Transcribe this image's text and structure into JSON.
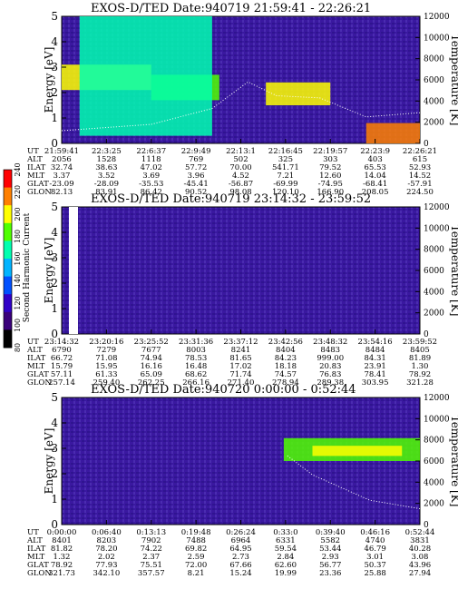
{
  "panels": [
    {
      "title": "EXOS-D/TED   Date:940719  21:59:41 - 22:26:21",
      "ylabel_left": "Energy [eV]",
      "ylabel_right": "Temperature [K]",
      "row_labels": [
        "UT",
        "ALT",
        "ILAT",
        "MLT",
        "GLAT",
        "GLON"
      ],
      "columns": [
        [
          "21:59:41",
          "2056",
          "32.74",
          "3.37",
          "-23.09",
          "82.13"
        ],
        [
          "22:3:25",
          "1528",
          "38.63",
          "3.52",
          "-28.09",
          "83.91"
        ],
        [
          "22:6:37",
          "1118",
          "47.02",
          "3.69",
          "-35.53",
          "86.42"
        ],
        [
          "22:9:49",
          "769",
          "57.72",
          "3.96",
          "-45.41",
          "90.52"
        ],
        [
          "22:13:1",
          "502",
          "70.00",
          "4.52",
          "-56.87",
          "98.08"
        ],
        [
          "22:16:45",
          "325",
          "541.71",
          "7.21",
          "-69.99",
          "120.10"
        ],
        [
          "22:19:57",
          "303",
          "79.52",
          "12.60",
          "-74.95",
          "166.90"
        ],
        [
          "22:23:9",
          "403",
          "65.53",
          "14.04",
          "-68.41",
          "208.05"
        ],
        [
          "22:26:21",
          "615",
          "52.93",
          "14.52",
          "-57.91",
          "224.50"
        ]
      ]
    },
    {
      "title": "EXOS-D/TED   Date:940719  23:14:32 - 23:59:52",
      "ylabel_left": "Energy [eV]",
      "ylabel_right": "Temperature [K]",
      "row_labels": [
        "UT",
        "ALT",
        "ILAT",
        "MLT",
        "GLAT",
        "GLON"
      ],
      "columns": [
        [
          "23:14:32",
          "6790",
          "66.72",
          "15.79",
          "57.11",
          "257.14"
        ],
        [
          "23:20:16",
          "7279",
          "71.08",
          "15.95",
          "61.33",
          "259.40"
        ],
        [
          "23:25:52",
          "7677",
          "74.94",
          "16.16",
          "65.09",
          "262.25"
        ],
        [
          "23:31:36",
          "8003",
          "78.53",
          "16.48",
          "68.62",
          "266.16"
        ],
        [
          "23:37:12",
          "8241",
          "81.65",
          "17.02",
          "71.74",
          "271.40"
        ],
        [
          "23:42:56",
          "8404",
          "84.23",
          "18.18",
          "74.57",
          "278.94"
        ],
        [
          "23:48:32",
          "8483",
          "999.00",
          "20.83",
          "76.83",
          "289.38"
        ],
        [
          "23:54:16",
          "8484",
          "84.31",
          "23.91",
          "78.41",
          "303.95"
        ],
        [
          "23:59:52",
          "8405",
          "81.89",
          "1.30",
          "78.92",
          "321.28"
        ]
      ]
    },
    {
      "title": "EXOS-D/TED   Date:940720  0:00:00 - 0:52:44",
      "ylabel_left": "Energy [eV]",
      "ylabel_right": "Temperature [K]",
      "row_labels": [
        "UT",
        "ALT",
        "ILAT",
        "MLT",
        "GLAT",
        "GLON"
      ],
      "columns": [
        [
          "0:00:00",
          "8401",
          "81.82",
          "1.32",
          "78.92",
          "321.73"
        ],
        [
          "0:06:40",
          "8203",
          "78.20",
          "2.02",
          "77.93",
          "342.10"
        ],
        [
          "0:13:13",
          "7902",
          "74.22",
          "2.37",
          "75.51",
          "357.57"
        ],
        [
          "0:19:48",
          "7488",
          "69.82",
          "2.59",
          "72.00",
          "8.21"
        ],
        [
          "0:26:24",
          "6964",
          "64.95",
          "2.73",
          "67.66",
          "15.24"
        ],
        [
          "0:33:0",
          "6331",
          "59.54",
          "2.84",
          "62.60",
          "19.99"
        ],
        [
          "0:39:40",
          "5582",
          "53.44",
          "2.93",
          "56.77",
          "23.36"
        ],
        [
          "0:46:16",
          "4740",
          "46.79",
          "3.01",
          "50.37",
          "25.88"
        ],
        [
          "0:52:44",
          "3831",
          "40.28",
          "3.08",
          "43.96",
          "27.94"
        ]
      ]
    }
  ],
  "colorbar": {
    "label": "Second Harmonic Current",
    "ticks": [
      "80",
      "100",
      "120",
      "140",
      "160",
      "180",
      "200",
      "220",
      "240"
    ],
    "colors": [
      "#000000",
      "#3a007a",
      "#3000c8",
      "#0050ff",
      "#00b4ff",
      "#00ffb0",
      "#50ff00",
      "#ffff00",
      "#ff8000",
      "#ff0000"
    ]
  },
  "chart_data": [
    {
      "type": "heatmap",
      "title": "EXOS-D/TED   Date:940719  21:59:41 - 22:26:21",
      "ylabel": "Energy [eV]",
      "y2label": "Temperature [K]",
      "x": [
        "21:59:41",
        "22:3:25",
        "22:6:37",
        "22:9:49",
        "22:13:1",
        "22:16:45",
        "22:19:57",
        "22:23:9",
        "22:26:21"
      ],
      "ylim": [
        0,
        5
      ],
      "y2lim": [
        0,
        12000
      ],
      "yticks": [
        0,
        1,
        2,
        3,
        4,
        5
      ],
      "y2ticks": [
        0,
        2000,
        4000,
        6000,
        8000,
        10000,
        12000
      ],
      "bands": [
        {
          "x0": 0.0,
          "x1": 0.25,
          "e0": 2.1,
          "e1": 3.1,
          "level": 7
        },
        {
          "x0": 0.25,
          "x1": 0.44,
          "e0": 1.7,
          "e1": 2.7,
          "level": 6
        },
        {
          "x0": 0.05,
          "x1": 0.42,
          "e0": 0.3,
          "e1": 5.0,
          "level": 5
        },
        {
          "x0": 0.57,
          "x1": 0.75,
          "e0": 1.5,
          "e1": 2.4,
          "level": 7
        },
        {
          "x0": 0.85,
          "x1": 1.0,
          "e0": 0.0,
          "e1": 0.8,
          "level": 8
        }
      ],
      "temperature": [
        [
          0.0,
          1200
        ],
        [
          0.25,
          1800
        ],
        [
          0.42,
          3300
        ],
        [
          0.52,
          5800
        ],
        [
          0.6,
          4500
        ],
        [
          0.72,
          4300
        ],
        [
          0.85,
          2500
        ],
        [
          1.0,
          2900
        ]
      ]
    },
    {
      "type": "heatmap",
      "title": "EXOS-D/TED   Date:940719  23:14:32 - 23:59:52",
      "ylabel": "Energy [eV]",
      "y2label": "Temperature [K]",
      "x": [
        "23:14:32",
        "23:20:16",
        "23:25:52",
        "23:31:36",
        "23:37:12",
        "23:42:56",
        "23:48:32",
        "23:54:16",
        "23:59:52"
      ],
      "ylim": [
        0,
        5
      ],
      "y2lim": [
        0,
        12000
      ],
      "yticks": [
        0,
        1,
        2,
        3,
        4,
        5
      ],
      "y2ticks": [
        0,
        2000,
        4000,
        6000,
        8000,
        10000,
        12000
      ],
      "bands": [],
      "temperature": []
    },
    {
      "type": "heatmap",
      "title": "EXOS-D/TED   Date:940720  0:00:00 - 0:52:44",
      "ylabel": "Energy [eV]",
      "y2label": "Temperature [K]",
      "x": [
        "0:00:00",
        "0:06:40",
        "0:13:13",
        "0:19:48",
        "0:26:24",
        "0:33:0",
        "0:39:40",
        "0:46:16",
        "0:52:44"
      ],
      "ylim": [
        0,
        5
      ],
      "y2lim": [
        0,
        12000
      ],
      "yticks": [
        0,
        1,
        2,
        3,
        4,
        5
      ],
      "y2ticks": [
        0,
        2000,
        4000,
        6000,
        8000,
        10000,
        12000
      ],
      "bands": [
        {
          "x0": 0.62,
          "x1": 1.0,
          "e0": 2.5,
          "e1": 3.4,
          "level": 6
        },
        {
          "x0": 0.7,
          "x1": 0.95,
          "e0": 2.7,
          "e1": 3.1,
          "level": 7
        }
      ],
      "temperature": [
        [
          0.63,
          6500
        ],
        [
          0.7,
          4700
        ],
        [
          0.78,
          3500
        ],
        [
          0.86,
          2300
        ],
        [
          1.0,
          1500
        ]
      ]
    }
  ]
}
